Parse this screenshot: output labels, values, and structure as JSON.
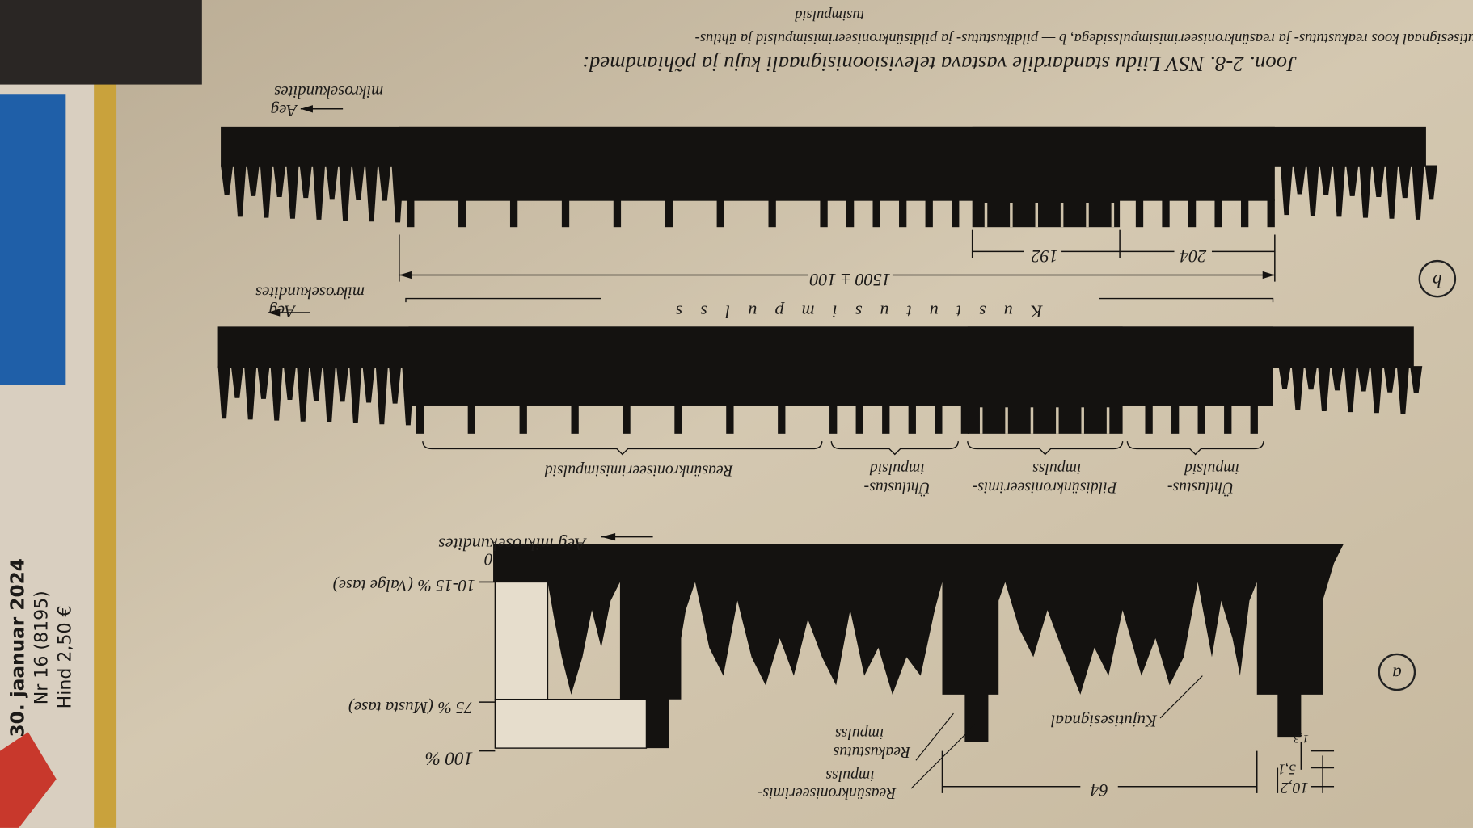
{
  "magazine": {
    "date": "30. jaanuar 2024",
    "issue": "Nr 16 (8195)",
    "price": "Hind 2,50 €"
  },
  "caption": {
    "line1": "Joon. 2-8. NSV Liidu standardile vastava televisioonisignaali kuju ja põhiandmed:",
    "line2": "a — kujutisesignaal koos reakustutus- ja reasünkroniseerimisimpulssidega, b — pildikustutus- ja pildisünkroniseerimisimpulsid ja ühtlus-",
    "line3": "tusimpulsid"
  },
  "panel_a": {
    "letter": "a",
    "sync_label": [
      "Reasünkroniseerimis-",
      "impulss"
    ],
    "blanking_label": [
      "Reakustutus",
      "impulss"
    ],
    "video_label": "Kujutisesignaal",
    "level_100": "100 %",
    "level_black": "75 % (Musta tase)",
    "level_white": "10-15 % (Valge tase)",
    "level_zero": "0",
    "time_axis": "Aeg mikrosekundites",
    "dim_line": "64",
    "dim_blank": "10,2",
    "dim_sync": "5,1",
    "dim_front": "1,3"
  },
  "panel_b": {
    "letter": "b",
    "eq_label_1": [
      "Ühtlustus-",
      "impulsid"
    ],
    "vsync_label": [
      "Pildisünkroniseerimis-",
      "impulss"
    ],
    "eq_label_2": [
      "Ühtlustus-",
      "impulsid"
    ],
    "hsync_label": "Reasünkroniseerimisimpulsid",
    "blanking_label": "Kustutusimpulss",
    "time_axis_1": [
      "Aeg",
      "mikrosekundites"
    ],
    "dim_total": "1500 ± 100",
    "dim_204": "204",
    "dim_192": "192",
    "time_axis_2": [
      "Aeg",
      "mikrosekundites"
    ]
  }
}
